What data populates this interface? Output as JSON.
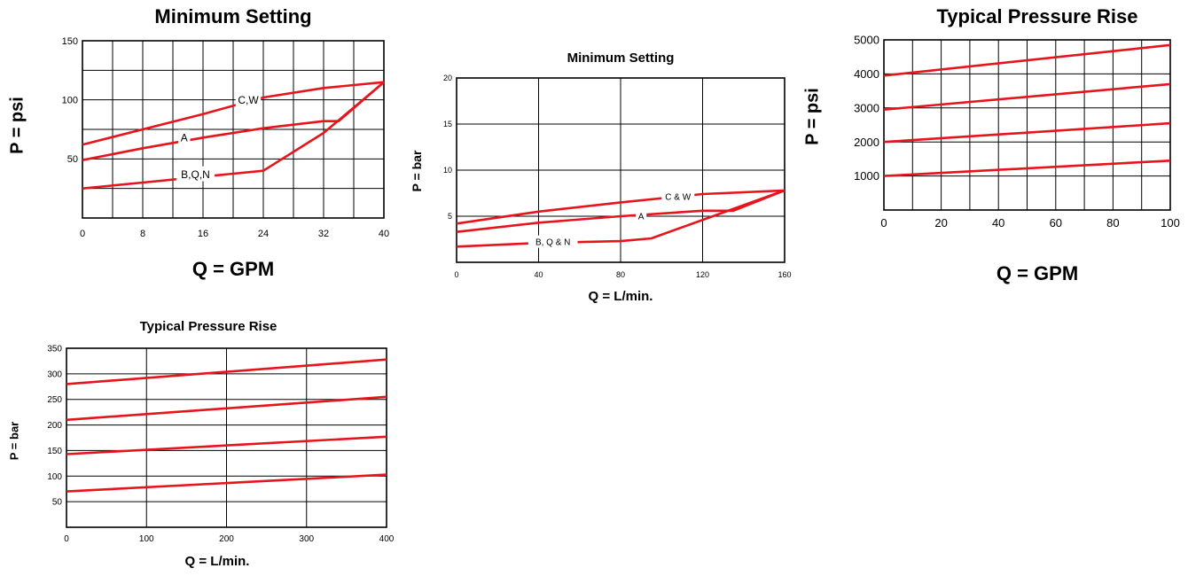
{
  "charts": [
    {
      "id": "c1",
      "type": "line",
      "title": "Minimum Setting",
      "xlabel": "Q = GPM",
      "ylabel": "P = psi",
      "xlim": [
        0,
        40
      ],
      "ylim": [
        0,
        150
      ],
      "xgrid": [
        4,
        8,
        12,
        16,
        20,
        24,
        28,
        32,
        36
      ],
      "ygrid": [
        25,
        50,
        75,
        100,
        125
      ],
      "xticks": [
        "0",
        "8",
        "16",
        "24",
        "32",
        "40"
      ],
      "xtick_values": [
        0,
        8,
        16,
        24,
        32,
        40
      ],
      "yticks": [
        "50",
        "100",
        "150"
      ],
      "ytick_values": [
        50,
        100,
        150
      ],
      "series": [
        {
          "name": "C,W",
          "points": [
            [
              0,
              62
            ],
            [
              8,
              75
            ],
            [
              16,
              88
            ],
            [
              24,
              102
            ],
            [
              32,
              110
            ],
            [
              40,
              115
            ]
          ]
        },
        {
          "name": "A",
          "points": [
            [
              0,
              49
            ],
            [
              8,
              59
            ],
            [
              16,
              68
            ],
            [
              24,
              76
            ],
            [
              32,
              82
            ],
            [
              34,
              82
            ],
            [
              40,
              115
            ]
          ]
        },
        {
          "name": "B,Q,N",
          "points": [
            [
              0,
              25
            ],
            [
              8,
              30
            ],
            [
              16,
              35
            ],
            [
              24,
              40
            ],
            [
              32,
              72
            ],
            [
              40,
              115
            ]
          ]
        }
      ],
      "labels": [
        {
          "text": "C,W",
          "x": 22,
          "y": 100
        },
        {
          "text": "A",
          "x": 13.5,
          "y": 68
        },
        {
          "text": "B,Q,N",
          "x": 15,
          "y": 37
        }
      ]
    },
    {
      "id": "c2",
      "type": "line",
      "title": "Minimum Setting",
      "xlabel": "Q = L/min.",
      "ylabel": "P = bar",
      "xlim": [
        0,
        160
      ],
      "ylim": [
        0,
        20
      ],
      "xgrid": [
        40,
        80,
        120
      ],
      "ygrid": [
        5,
        10,
        15
      ],
      "xticks": [
        "0",
        "40",
        "80",
        "120",
        "160"
      ],
      "xtick_values": [
        0,
        40,
        80,
        120,
        160
      ],
      "yticks": [
        "5",
        "10",
        "15",
        "20"
      ],
      "ytick_values": [
        5,
        10,
        15,
        20
      ],
      "series": [
        {
          "name": "C & W",
          "points": [
            [
              0,
              4.2
            ],
            [
              40,
              5.5
            ],
            [
              80,
              6.5
            ],
            [
              120,
              7.4
            ],
            [
              160,
              7.8
            ]
          ]
        },
        {
          "name": "A",
          "points": [
            [
              0,
              3.3
            ],
            [
              40,
              4.3
            ],
            [
              80,
              5.0
            ],
            [
              120,
              5.6
            ],
            [
              135,
              5.6
            ],
            [
              160,
              7.8
            ]
          ]
        },
        {
          "name": "B, Q & N",
          "points": [
            [
              0,
              1.7
            ],
            [
              40,
              2.1
            ],
            [
              80,
              2.3
            ],
            [
              95,
              2.6
            ],
            [
              125,
              5.0
            ],
            [
              160,
              7.8
            ]
          ]
        }
      ],
      "labels": [
        {
          "text": "C & W",
          "x": 108,
          "y": 7.1
        },
        {
          "text": "A",
          "x": 90,
          "y": 5.0
        },
        {
          "text": "B, Q & N",
          "x": 47,
          "y": 2.2
        }
      ]
    },
    {
      "id": "c3",
      "type": "line",
      "title": "Typical Pressure Rise",
      "xlabel": "Q = GPM",
      "ylabel": "P = psi",
      "xlim": [
        0,
        100
      ],
      "ylim": [
        0,
        5000
      ],
      "xgrid": [
        10,
        20,
        30,
        40,
        50,
        60,
        70,
        80,
        90
      ],
      "ygrid": [
        1000,
        2000,
        3000,
        4000
      ],
      "xticks": [
        "0",
        "20",
        "40",
        "60",
        "80",
        "100"
      ],
      "xtick_values": [
        0,
        20,
        40,
        60,
        80,
        100
      ],
      "yticks": [
        "1000",
        "2000",
        "3000",
        "4000",
        "5000"
      ],
      "ytick_values": [
        1000,
        2000,
        3000,
        4000,
        5000
      ],
      "series": [
        {
          "name": "",
          "points": [
            [
              0,
              1000
            ],
            [
              100,
              1450
            ]
          ]
        },
        {
          "name": "",
          "points": [
            [
              0,
              2000
            ],
            [
              100,
              2550
            ]
          ]
        },
        {
          "name": "",
          "points": [
            [
              0,
              2950
            ],
            [
              100,
              3700
            ]
          ]
        },
        {
          "name": "",
          "points": [
            [
              0,
              3950
            ],
            [
              100,
              4850
            ]
          ]
        }
      ],
      "labels": []
    },
    {
      "id": "c4",
      "type": "line",
      "title": "Typical Pressure Rise",
      "xlabel": "Q = L/min.",
      "ylabel": "P = bar",
      "xlim": [
        0,
        400
      ],
      "ylim": [
        0,
        350
      ],
      "xgrid": [
        100,
        200,
        300
      ],
      "ygrid": [
        50,
        100,
        150,
        200,
        250,
        300
      ],
      "xticks": [
        "0",
        "100",
        "200",
        "300",
        "400"
      ],
      "xtick_values": [
        0,
        100,
        200,
        300,
        400
      ],
      "yticks": [
        "50",
        "100",
        "150",
        "200",
        "250",
        "300",
        "350"
      ],
      "ytick_values": [
        50,
        100,
        150,
        200,
        250,
        300,
        350
      ],
      "series": [
        {
          "name": "",
          "points": [
            [
              0,
              70
            ],
            [
              400,
              103
            ]
          ]
        },
        {
          "name": "",
          "points": [
            [
              0,
              143
            ],
            [
              400,
              177
            ]
          ]
        },
        {
          "name": "",
          "points": [
            [
              0,
              210
            ],
            [
              400,
              255
            ]
          ]
        },
        {
          "name": "",
          "points": [
            [
              0,
              280
            ],
            [
              400,
              328
            ]
          ]
        }
      ],
      "labels": []
    }
  ],
  "colors": {
    "series": "#e8141c",
    "grid": "#000000"
  }
}
